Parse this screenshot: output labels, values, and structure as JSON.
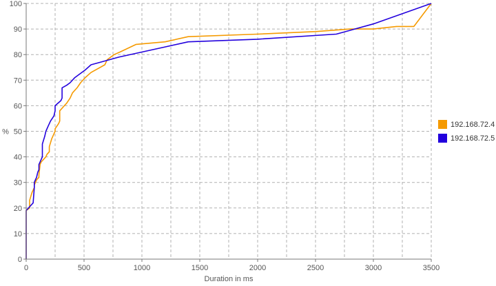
{
  "chart_data": {
    "type": "line",
    "title": "",
    "xlabel": "Duration in ms",
    "ylabel": "%",
    "xlim": [
      0,
      3500
    ],
    "ylim": [
      0,
      100
    ],
    "xticks": [
      0,
      500,
      1000,
      1500,
      2000,
      2500,
      3000,
      3500
    ],
    "yticks": [
      0,
      10,
      20,
      30,
      40,
      50,
      60,
      70,
      80,
      90,
      100
    ],
    "grid": true,
    "grid_style": "dashed",
    "legend_position": "right",
    "series": [
      {
        "name": "192.168.72.4",
        "color": "#f59a00",
        "x": [
          0,
          0,
          30,
          30,
          50,
          60,
          70,
          70,
          90,
          110,
          110,
          120,
          130,
          150,
          170,
          180,
          200,
          200,
          220,
          240,
          250,
          250,
          280,
          290,
          290,
          310,
          330,
          350,
          380,
          400,
          440,
          470,
          510,
          560,
          680,
          700,
          760,
          810,
          950,
          1200,
          1400,
          2000,
          2500,
          2800,
          3000,
          3200,
          3350,
          3500
        ],
        "y": [
          0,
          19,
          20,
          23,
          26,
          27,
          28,
          29,
          31,
          32,
          33,
          37,
          38,
          39,
          40,
          41,
          42,
          44,
          47,
          49,
          50,
          51,
          53,
          54,
          58,
          59,
          60,
          61,
          63,
          65,
          67,
          69,
          71,
          73,
          76,
          78,
          80,
          81,
          84,
          85,
          87,
          88,
          89,
          90,
          90,
          91,
          91,
          100
        ]
      },
      {
        "name": "192.168.72.5",
        "color": "#2200dd",
        "x": [
          0,
          0,
          60,
          70,
          70,
          80,
          90,
          100,
          110,
          110,
          140,
          140,
          160,
          170,
          190,
          210,
          240,
          250,
          250,
          300,
          310,
          310,
          350,
          380,
          420,
          510,
          560,
          720,
          800,
          1000,
          1200,
          1400,
          2000,
          2680,
          3000,
          3500
        ],
        "y": [
          0,
          19,
          22,
          28,
          30,
          31,
          32,
          34,
          35,
          37,
          40,
          45,
          48,
          50,
          52,
          54,
          56,
          58,
          60,
          62,
          63,
          67,
          68,
          69,
          71,
          74,
          76,
          78,
          79,
          81,
          83,
          85,
          86,
          88,
          92,
          100
        ]
      }
    ]
  }
}
